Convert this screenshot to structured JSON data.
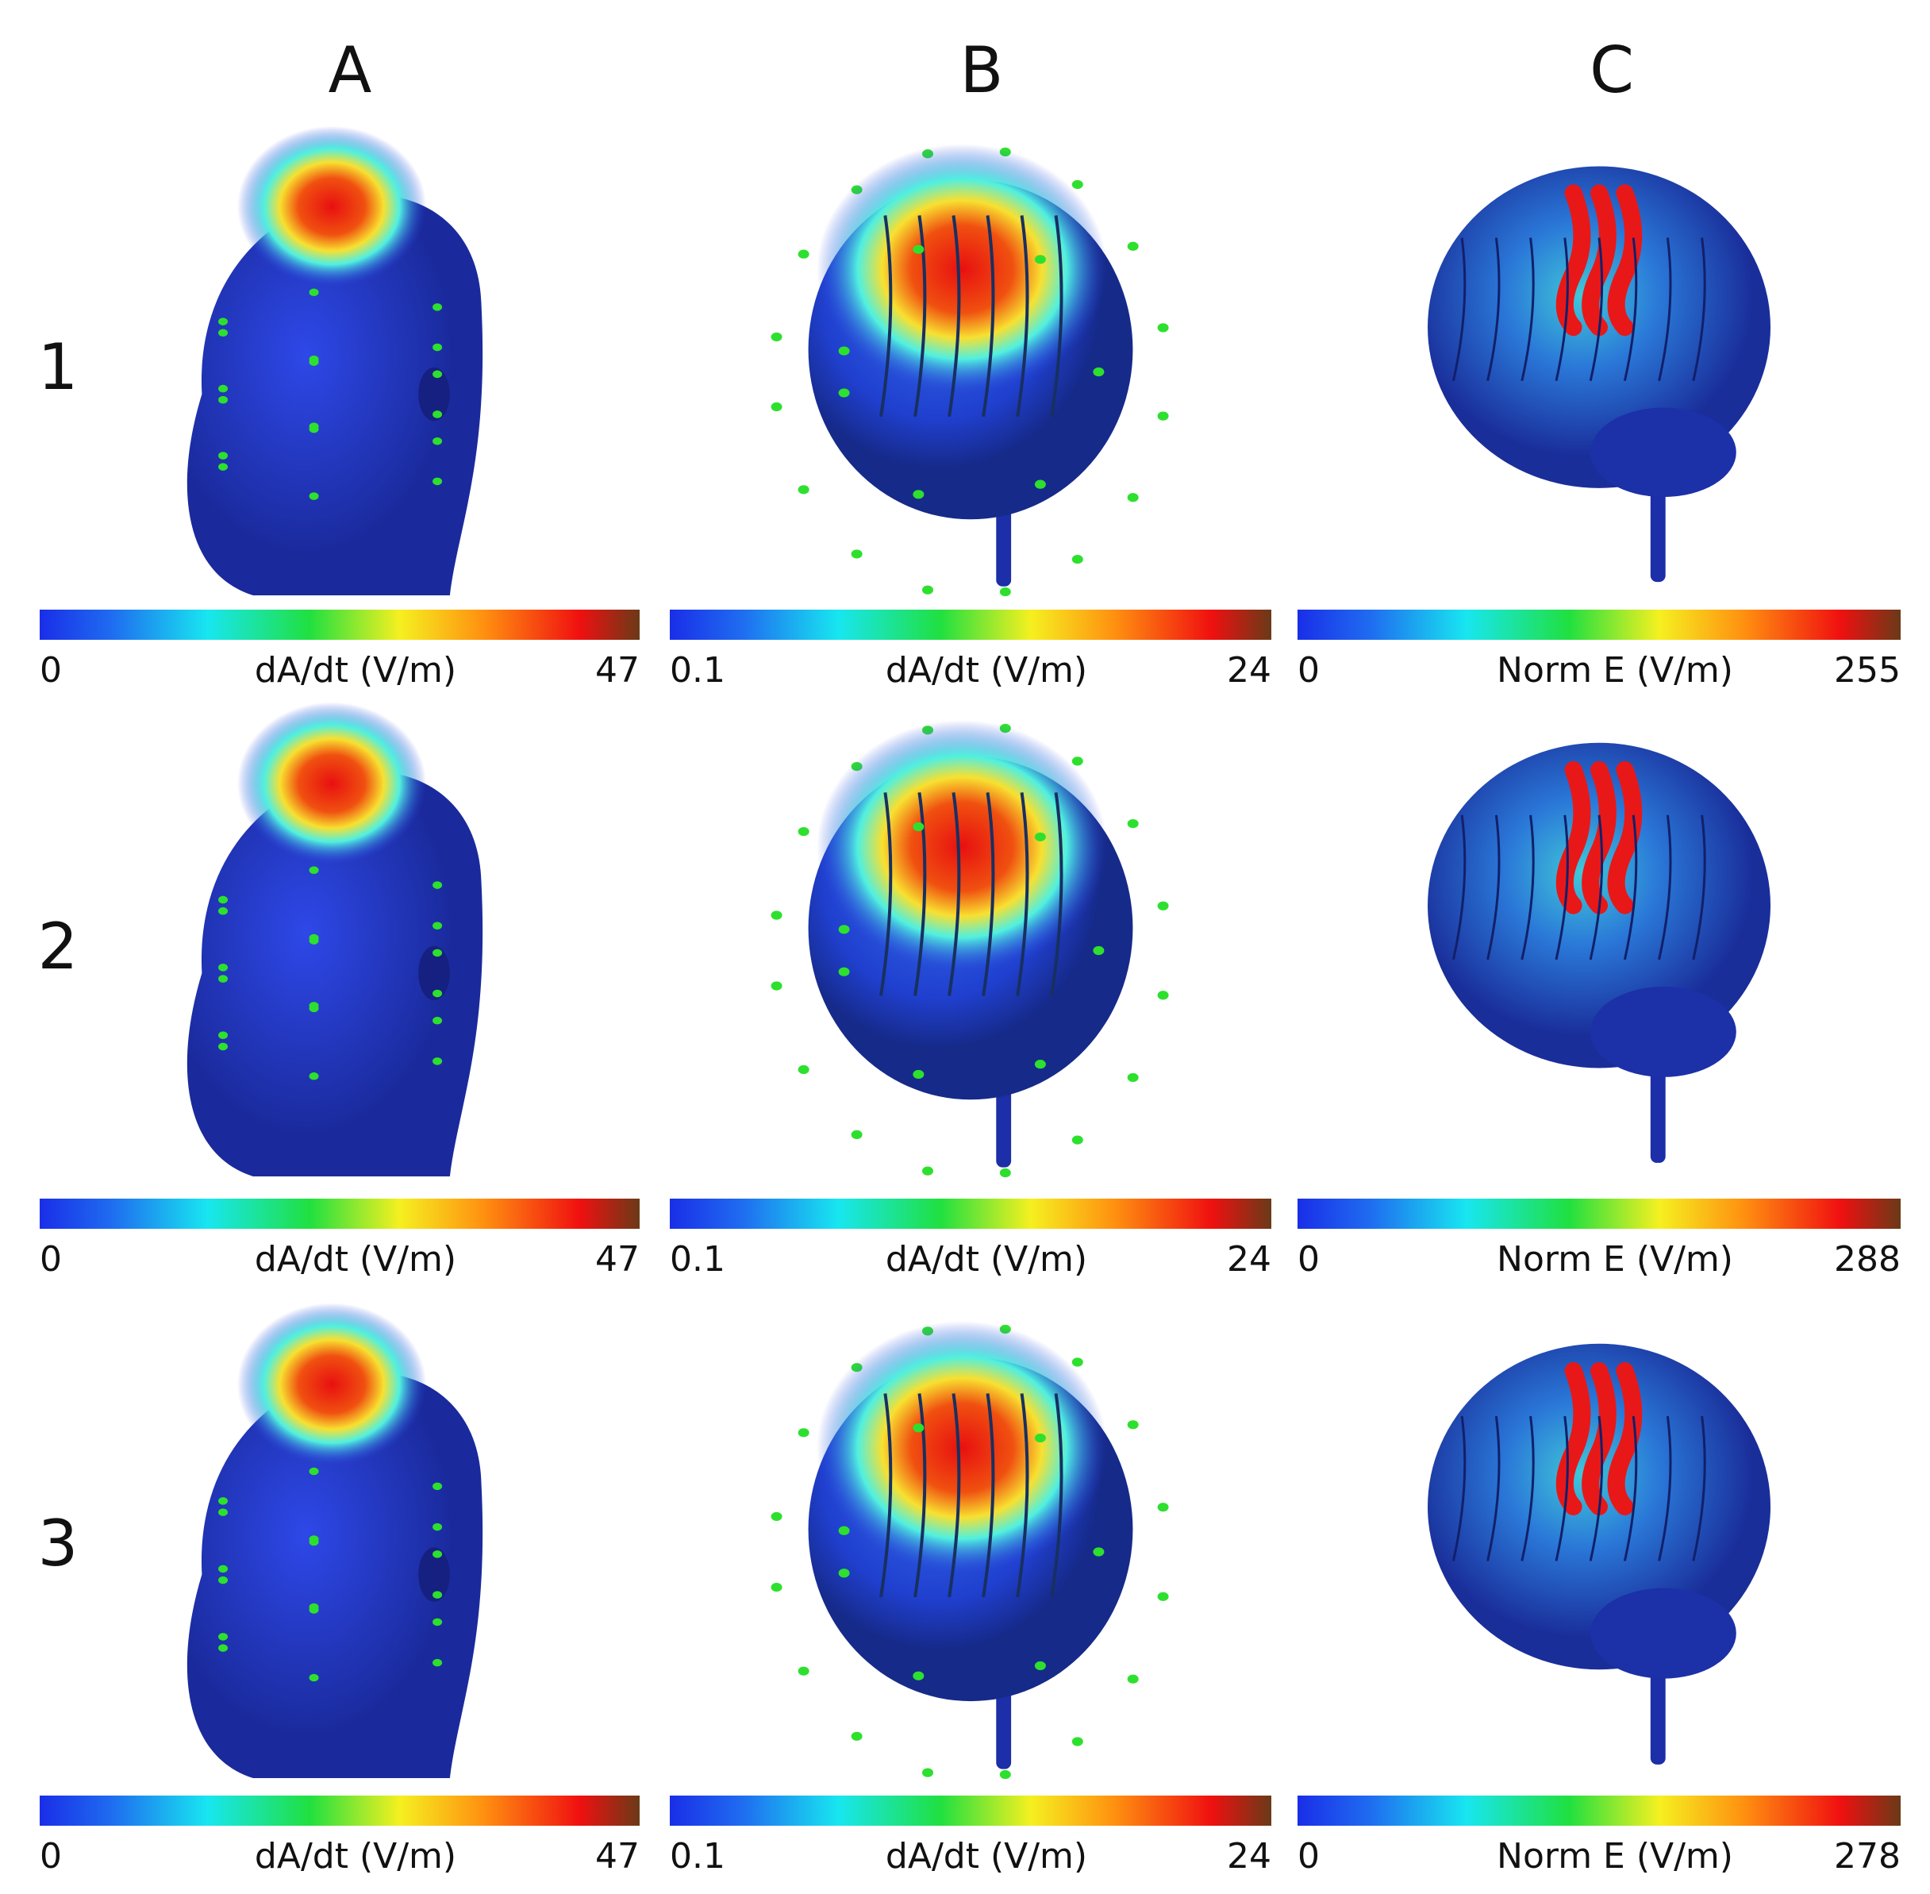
{
  "columns": [
    "A",
    "B",
    "C"
  ],
  "rows": [
    "1",
    "2",
    "3"
  ],
  "colorbars": [
    [
      {
        "min": 0,
        "label": "dA/dt (V/m)",
        "max": 47
      },
      {
        "min": 0.1,
        "label": "dA/dt (V/m)",
        "max": 24
      },
      {
        "min": 0,
        "label": "Norm E (V/m)",
        "max": 255
      }
    ],
    [
      {
        "min": 0,
        "label": "dA/dt (V/m)",
        "max": 47
      },
      {
        "min": 0.1,
        "label": "dA/dt (V/m)",
        "max": 24
      },
      {
        "min": 0,
        "label": "Norm E (V/m)",
        "max": 288
      }
    ],
    [
      {
        "min": 0,
        "label": "dA/dt (V/m)",
        "max": 47
      },
      {
        "min": 0.1,
        "label": "dA/dt (V/m)",
        "max": 24
      },
      {
        "min": 0,
        "label": "Norm E (V/m)",
        "max": 278
      }
    ]
  ]
}
